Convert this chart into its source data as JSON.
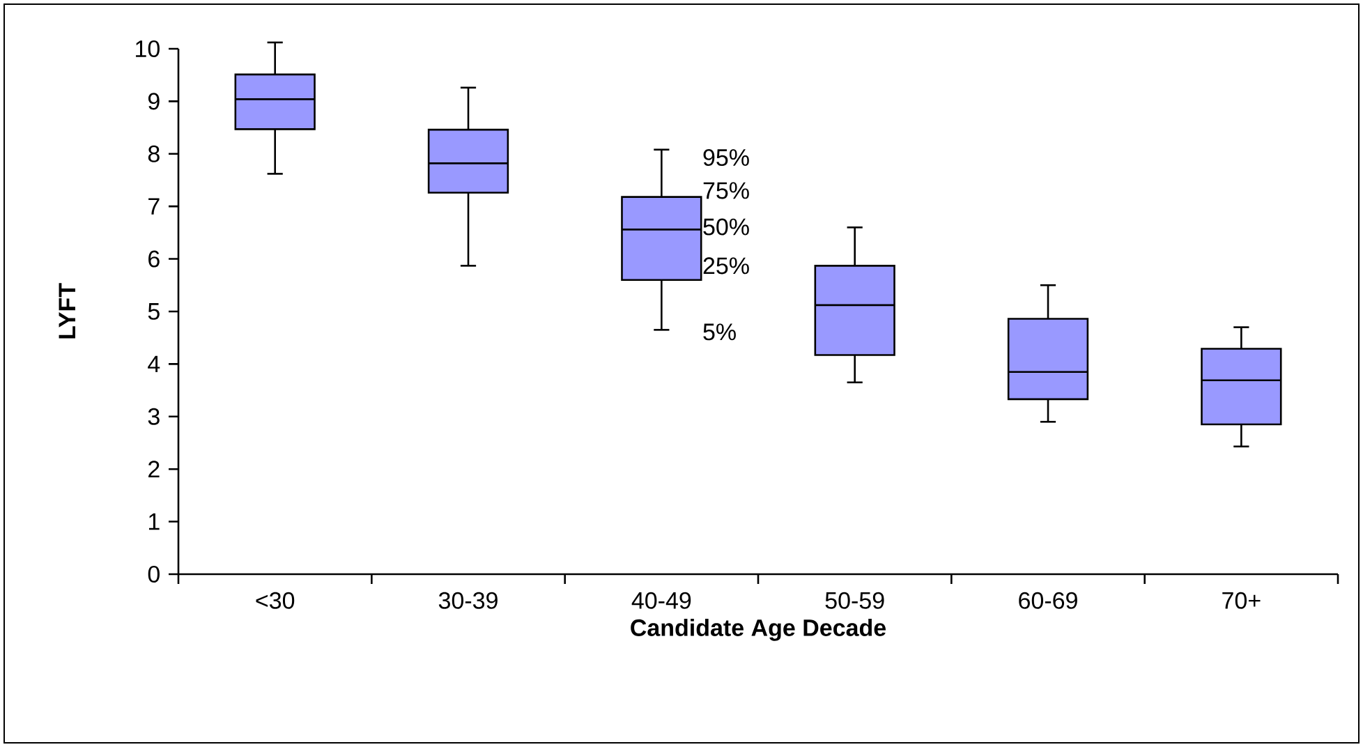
{
  "chart_data": {
    "type": "box",
    "xlabel": "Candidate Age Decade",
    "ylabel": "LYFT",
    "categories": [
      "<30",
      "30-39",
      "40-49",
      "50-59",
      "60-69",
      "70+"
    ],
    "series": [
      {
        "color": "#9999ff",
        "boxes": [
          {
            "low": 7.62,
            "q1": 8.47,
            "median": 9.04,
            "q3": 9.51,
            "high": 10.12
          },
          {
            "low": 5.87,
            "q1": 7.26,
            "median": 7.82,
            "q3": 8.46,
            "high": 9.26
          },
          {
            "low": 4.65,
            "q1": 5.6,
            "median": 6.56,
            "q3": 7.18,
            "high": 8.08
          },
          {
            "low": 3.65,
            "q1": 4.17,
            "median": 5.12,
            "q3": 5.87,
            "high": 6.6
          },
          {
            "low": 2.9,
            "q1": 3.33,
            "median": 3.85,
            "q3": 4.86,
            "high": 5.5
          },
          {
            "low": 2.43,
            "q1": 2.85,
            "median": 3.69,
            "q3": 4.29,
            "high": 4.7
          }
        ]
      }
    ],
    "ylim": [
      0,
      10
    ],
    "yticks": [
      0,
      1,
      2,
      3,
      4,
      5,
      6,
      7,
      8,
      9,
      10
    ],
    "annotations": [
      "95%",
      "75%",
      "50%",
      "25%",
      "5%"
    ]
  }
}
